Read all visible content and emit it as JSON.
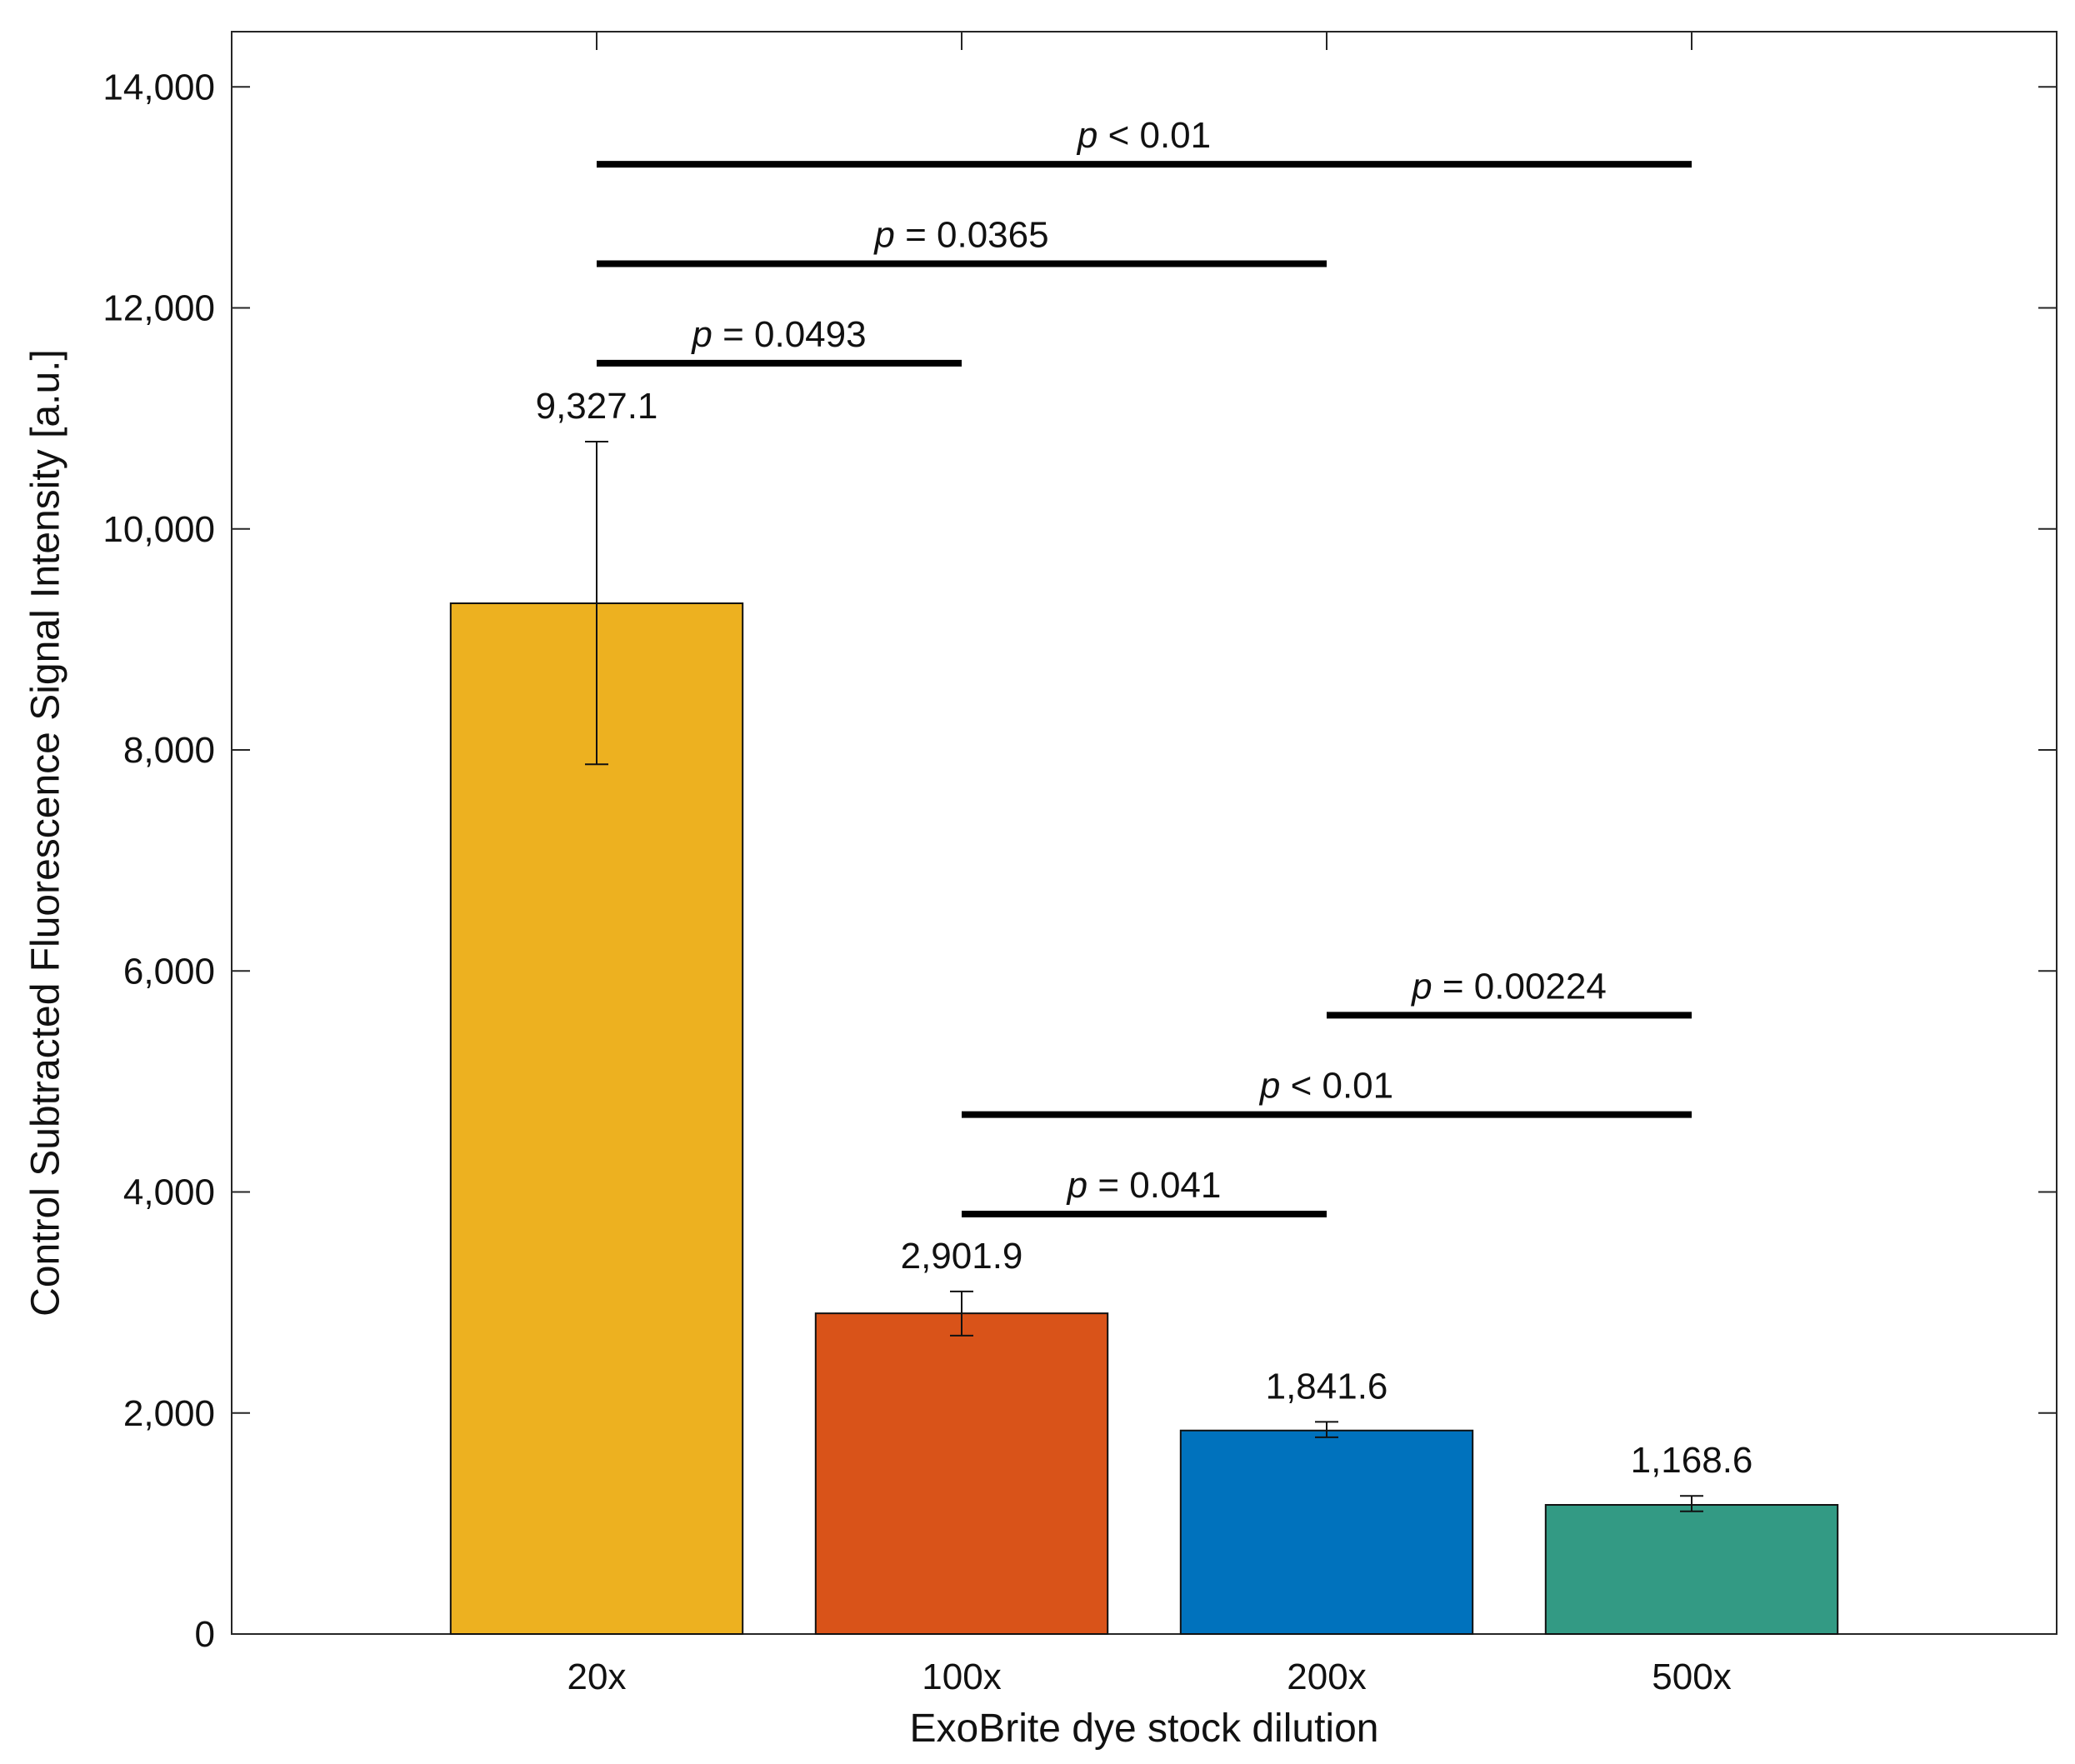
{
  "chart_data": {
    "type": "bar",
    "title": "",
    "xlabel": "ExoBrite dye stock dilution",
    "ylabel": "Control Subtracted Fluorescence Signal Intensity [a.u.]",
    "ylim": [
      0,
      14500
    ],
    "yticks": [
      0,
      2000,
      4000,
      6000,
      8000,
      10000,
      12000,
      14000
    ],
    "ytick_labels": [
      "0",
      "2,000",
      "4,000",
      "6,000",
      "8,000",
      "10,000",
      "12,000",
      "14,000"
    ],
    "grid": false,
    "categories": [
      "20x",
      "100x",
      "200x",
      "500x"
    ],
    "values": [
      9327.1,
      2901.9,
      1841.6,
      1168.6
    ],
    "value_labels": [
      "9,327.1",
      "2,901.9",
      "1,841.6",
      "1,168.6"
    ],
    "error_low": [
      7870,
      2700,
      1780,
      1110
    ],
    "error_high": [
      10790,
      3100,
      1920,
      1250
    ],
    "colors": [
      "#EDB120",
      "#D95319",
      "#0072BD",
      "#339A84"
    ],
    "significance": [
      {
        "from": 0,
        "to": 3,
        "y": 13300,
        "label": "p < 0.01"
      },
      {
        "from": 0,
        "to": 2,
        "y": 12400,
        "label": "p = 0.0365"
      },
      {
        "from": 0,
        "to": 1,
        "y": 11500,
        "label": "p = 0.0493"
      },
      {
        "from": 2,
        "to": 3,
        "y": 5600,
        "label": "p = 0.00224"
      },
      {
        "from": 1,
        "to": 3,
        "y": 4700,
        "label": "p < 0.01"
      },
      {
        "from": 1,
        "to": 2,
        "y": 3800,
        "label": "p = 0.041"
      }
    ]
  }
}
